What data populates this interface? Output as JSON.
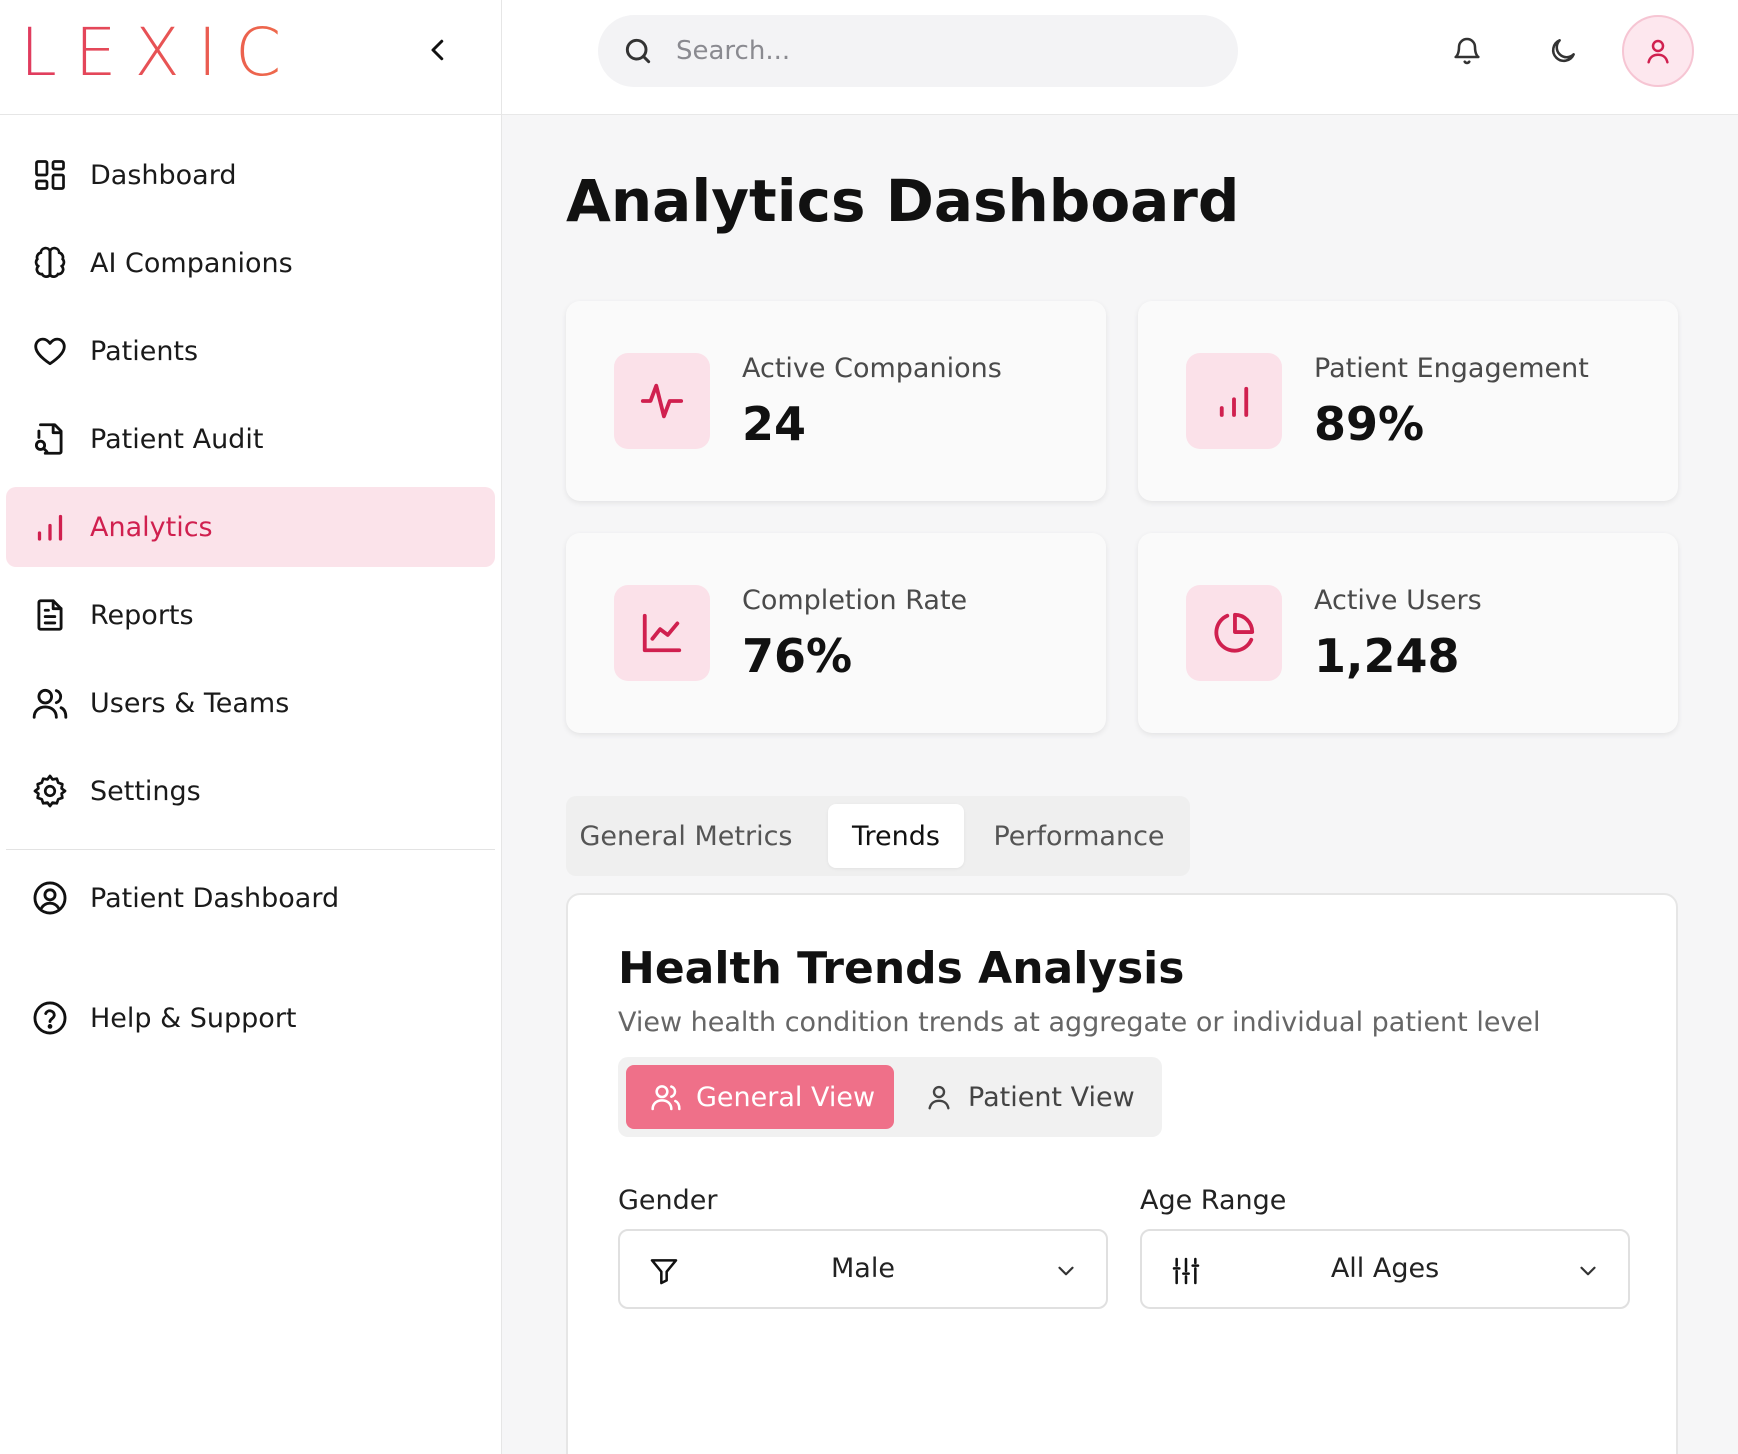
{
  "brand": {
    "logo": "LEXIC"
  },
  "sidebar": {
    "items": [
      {
        "label": "Dashboard",
        "icon": "layout-grid-icon"
      },
      {
        "label": "AI Companions",
        "icon": "brain-icon"
      },
      {
        "label": "Patients",
        "icon": "heart-icon"
      },
      {
        "label": "Patient Audit",
        "icon": "file-search-icon"
      },
      {
        "label": "Analytics",
        "icon": "bar-chart-icon",
        "active": true
      },
      {
        "label": "Reports",
        "icon": "file-text-icon"
      },
      {
        "label": "Users & Teams",
        "icon": "users-icon"
      },
      {
        "label": "Settings",
        "icon": "gear-icon"
      }
    ],
    "secondary": {
      "label": "Patient Dashboard",
      "icon": "user-circle-icon"
    },
    "help": {
      "label": "Help & Support",
      "icon": "help-circle-icon"
    }
  },
  "search": {
    "placeholder": "Search..."
  },
  "page": {
    "title": "Analytics Dashboard"
  },
  "stats": [
    {
      "label": "Active Companions",
      "value": "24",
      "icon": "activity-icon"
    },
    {
      "label": "Patient Engagement",
      "value": "89%",
      "icon": "bar-chart-icon"
    },
    {
      "label": "Completion Rate",
      "value": "76%",
      "icon": "line-chart-icon"
    },
    {
      "label": "Active Users",
      "value": "1,248",
      "icon": "pie-chart-icon"
    }
  ],
  "tabs": [
    {
      "label": "General Metrics"
    },
    {
      "label": "Trends",
      "active": true
    },
    {
      "label": "Performance"
    }
  ],
  "panel": {
    "title": "Health Trends Analysis",
    "subtitle": "View health condition trends at aggregate or individual patient level",
    "views": {
      "general": "General View",
      "patient": "Patient View",
      "selected": "General View"
    },
    "filters": {
      "gender": {
        "label": "Gender",
        "value": "Male"
      },
      "age": {
        "label": "Age Range",
        "value": "All Ages"
      }
    }
  },
  "colors": {
    "accent": "#d0204f",
    "accent_light": "#fbe1e9",
    "button": "#ef7089"
  }
}
